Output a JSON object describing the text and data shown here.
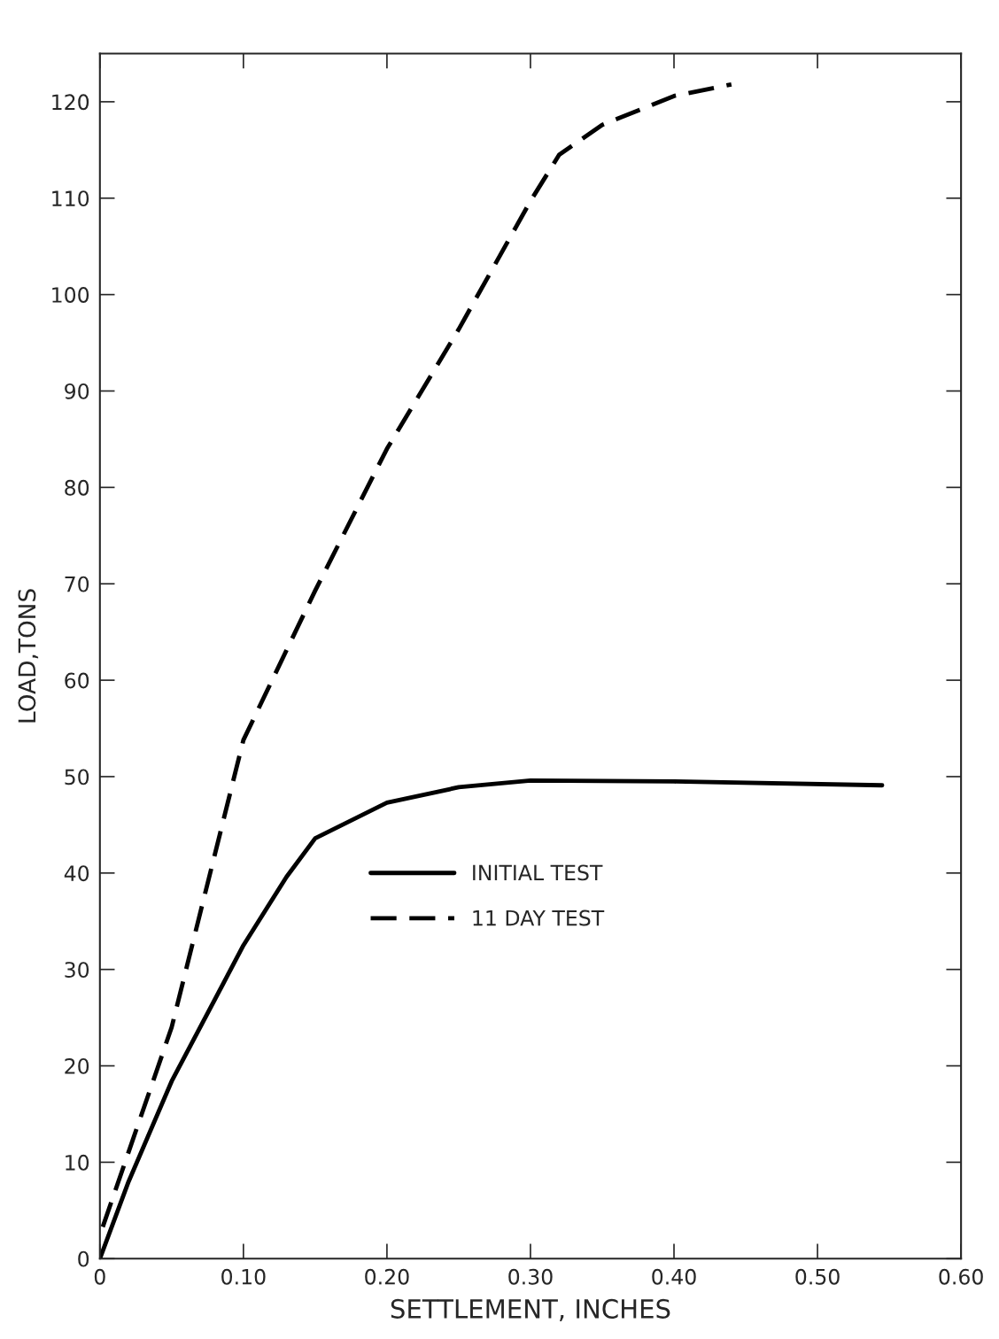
{
  "chart_data": {
    "type": "line",
    "xlabel": "SETTLEMENT, INCHES",
    "ylabel": "LOAD,TONS",
    "xlim": [
      0,
      0.6
    ],
    "ylim": [
      0,
      125
    ],
    "xticks": [
      0,
      {
        "value": 0.1,
        "label": "0.10"
      },
      {
        "value": 0.2,
        "label": "0.20"
      },
      {
        "value": 0.3,
        "label": "0.30"
      },
      {
        "value": 0.4,
        "label": "0.40"
      },
      {
        "value": 0.5,
        "label": "0.50"
      },
      {
        "value": 0.6,
        "label": "0.60"
      }
    ],
    "yticks": [
      0,
      10,
      20,
      30,
      40,
      50,
      60,
      70,
      80,
      90,
      100,
      110,
      120
    ],
    "grid": false,
    "legend": "center",
    "series": [
      {
        "name": "INITIAL TEST",
        "color": "#000000",
        "line_style": "solid",
        "x": [
          0,
          0.02,
          0.05,
          0.1,
          0.13,
          0.15,
          0.2,
          0.25,
          0.3,
          0.4,
          0.545
        ],
        "values": [
          0,
          8,
          18.4,
          32.5,
          39.6,
          43.6,
          47.3,
          48.9,
          49.6,
          49.5,
          49.1
        ]
      },
      {
        "name": "11 DAY TEST",
        "color": "#000000",
        "line_style": "dashed",
        "x": [
          0.002,
          0.05,
          0.1,
          0.15,
          0.2,
          0.25,
          0.3,
          0.32,
          0.35,
          0.4,
          0.44
        ],
        "values": [
          3.3,
          24,
          53.8,
          69.3,
          84,
          96.4,
          109.7,
          114.5,
          117.6,
          120.6,
          121.8
        ]
      }
    ]
  }
}
